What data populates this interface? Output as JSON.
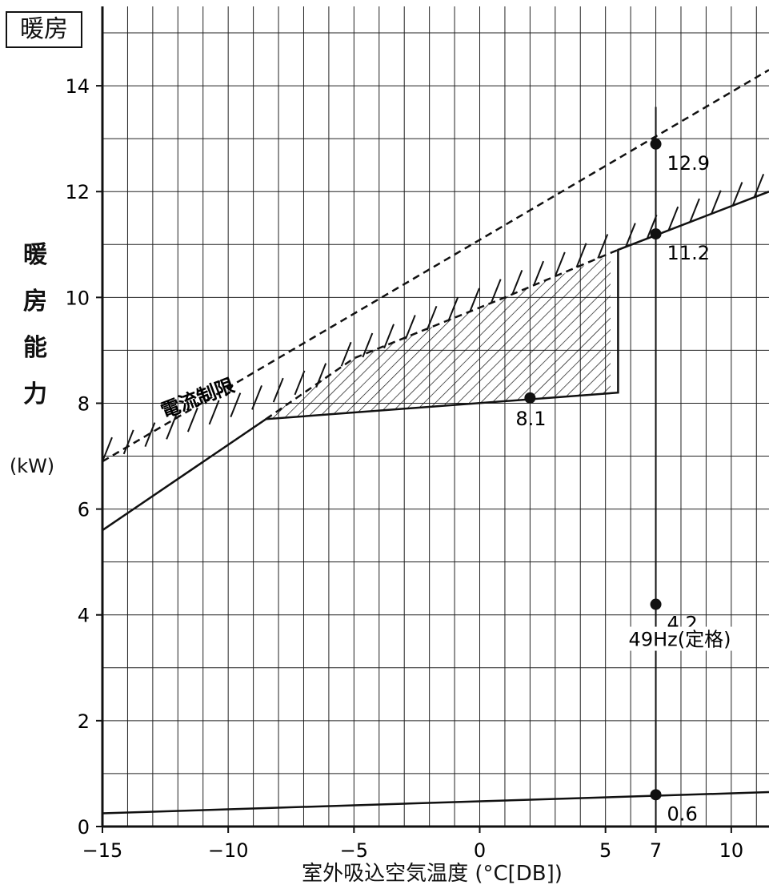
{
  "mode_label": "暖房",
  "chart_data": {
    "type": "line",
    "title": "",
    "ylabel_chars": [
      "暖",
      "房",
      "能",
      "力"
    ],
    "yunit": "(kW)",
    "xlabel": "室外吸込空気温度 (°C[DB])",
    "xlim": [
      -15,
      11.5
    ],
    "ylim": [
      0,
      15.5
    ],
    "xticks": [
      -15,
      -10,
      -5,
      0,
      5,
      7,
      10
    ],
    "yticks": [
      0,
      2,
      4,
      6,
      8,
      10,
      12,
      14
    ],
    "grid": true,
    "series": [
      {
        "style": "solid",
        "points": [
          [
            -15,
            5.6
          ],
          [
            -8.5,
            7.7
          ],
          [
            5.5,
            8.2
          ],
          [
            5.5,
            10.9
          ],
          [
            11.5,
            12.0
          ]
        ]
      },
      {
        "style": "dashed",
        "points": [
          [
            -15,
            6.9
          ],
          [
            11.5,
            14.3
          ]
        ]
      },
      {
        "style": "dashed",
        "points": [
          [
            -8.5,
            7.7
          ],
          [
            -5,
            8.85
          ],
          [
            1,
            10.0
          ],
          [
            5.5,
            10.9
          ]
        ]
      },
      {
        "style": "solid",
        "points": [
          [
            -15,
            0.25
          ],
          [
            11.5,
            0.65
          ]
        ]
      }
    ],
    "vertical_line_x": 7,
    "hatched_region": [
      [
        -8.5,
        7.7
      ],
      [
        -5,
        8.85
      ],
      [
        1,
        10.0
      ],
      [
        5.2,
        10.8
      ],
      [
        5.2,
        8.2
      ]
    ],
    "limit_label": "電流制限",
    "points": [
      {
        "x": 7,
        "y": 12.9,
        "label": "12.9"
      },
      {
        "x": 7,
        "y": 11.2,
        "label": "11.2"
      },
      {
        "x": 2,
        "y": 8.1,
        "label": "8.1"
      },
      {
        "x": 7,
        "y": 4.2,
        "label": "4.2"
      },
      {
        "x": 7,
        "y": 0.6,
        "label": "0.6"
      }
    ],
    "annotation": "49Hz(定格)"
  }
}
